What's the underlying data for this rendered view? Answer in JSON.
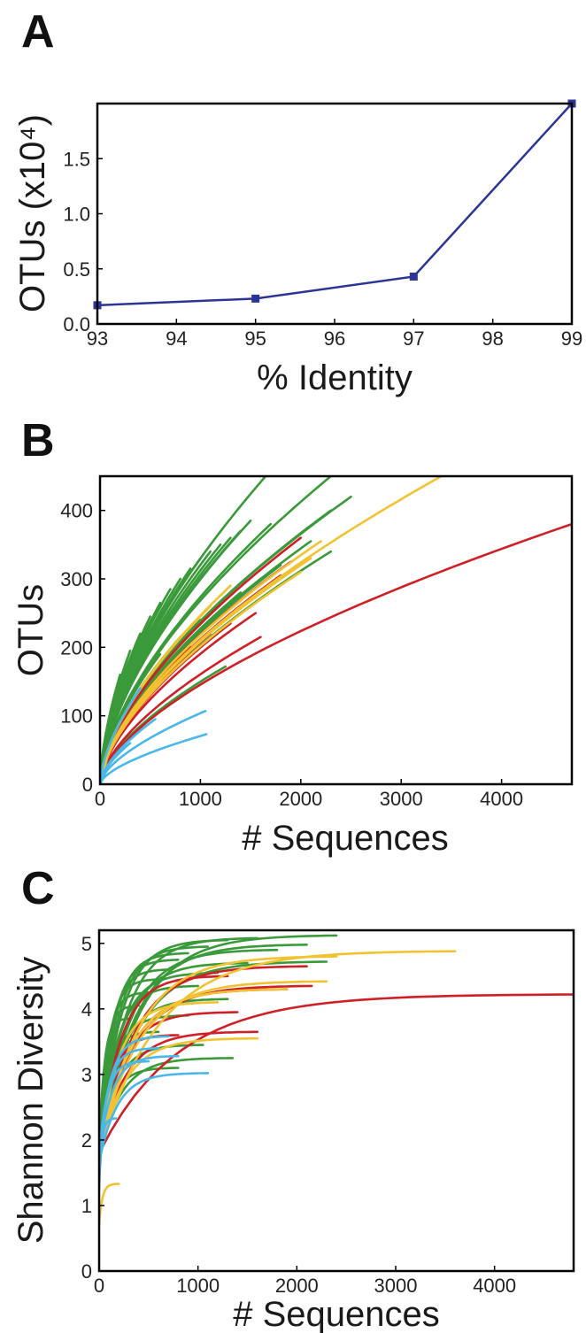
{
  "panels": {
    "a": {
      "letter": "A"
    },
    "b": {
      "letter": "B"
    },
    "c": {
      "letter": "C"
    }
  },
  "chart_data": [
    {
      "panel": "A",
      "type": "line",
      "xlabel": "% Identity",
      "ylabel": "OTUs (x10⁴)",
      "xlim": [
        93,
        99
      ],
      "ylim": [
        0,
        2.0
      ],
      "xticks": [
        "93",
        "94",
        "95",
        "96",
        "97",
        "98",
        "99"
      ],
      "yticks": [
        "0.0",
        "0.5",
        "1.0",
        "1.5"
      ],
      "grid": false,
      "series": [
        {
          "color": "#2b3595",
          "marker": "square",
          "x": [
            93,
            95,
            97,
            99
          ],
          "y": [
            0.17,
            0.23,
            0.43,
            2.0
          ]
        }
      ]
    },
    {
      "panel": "B",
      "type": "line",
      "xlabel": "# Sequences",
      "ylabel": "OTUs",
      "xlim": [
        0,
        4700
      ],
      "ylim": [
        0,
        450
      ],
      "xticks": [
        "0",
        "1000",
        "2000",
        "3000",
        "4000"
      ],
      "yticks": [
        "0",
        "100",
        "200",
        "300",
        "400"
      ],
      "grid": false,
      "color_groups": {
        "green": "#3a9a3a",
        "red": "#cf2027",
        "yellow": "#f1c232",
        "blue": "#49b8e8"
      },
      "curves": [
        {
          "c": "green",
          "n": 1650,
          "v": 450
        },
        {
          "c": "green",
          "n": 2300,
          "v": 450
        },
        {
          "c": "green",
          "n": 2500,
          "v": 420
        },
        {
          "c": "green",
          "n": 2300,
          "v": 400
        },
        {
          "c": "green",
          "n": 1500,
          "v": 385
        },
        {
          "c": "green",
          "n": 1700,
          "v": 380
        },
        {
          "c": "green",
          "n": 1400,
          "v": 370
        },
        {
          "c": "green",
          "n": 1300,
          "v": 360
        },
        {
          "c": "green",
          "n": 2100,
          "v": 355
        },
        {
          "c": "green",
          "n": 1200,
          "v": 350
        },
        {
          "c": "green",
          "n": 1100,
          "v": 340
        },
        {
          "c": "green",
          "n": 2300,
          "v": 340
        },
        {
          "c": "green",
          "n": 1000,
          "v": 330
        },
        {
          "c": "green",
          "n": 900,
          "v": 315
        },
        {
          "c": "green",
          "n": 1800,
          "v": 320
        },
        {
          "c": "green",
          "n": 800,
          "v": 300
        },
        {
          "c": "green",
          "n": 1600,
          "v": 300
        },
        {
          "c": "green",
          "n": 700,
          "v": 285
        },
        {
          "c": "green",
          "n": 1400,
          "v": 280
        },
        {
          "c": "green",
          "n": 600,
          "v": 265
        },
        {
          "c": "green",
          "n": 500,
          "v": 245
        },
        {
          "c": "green",
          "n": 1200,
          "v": 262
        },
        {
          "c": "green",
          "n": 400,
          "v": 220
        },
        {
          "c": "green",
          "n": 1000,
          "v": 240
        },
        {
          "c": "green",
          "n": 300,
          "v": 195
        },
        {
          "c": "green",
          "n": 800,
          "v": 215
        },
        {
          "c": "green",
          "n": 200,
          "v": 160
        },
        {
          "c": "green",
          "n": 1250,
          "v": 172
        },
        {
          "c": "green",
          "n": 600,
          "v": 190
        },
        {
          "c": "yellow",
          "n": 3400,
          "v": 450
        },
        {
          "c": "yellow",
          "n": 2200,
          "v": 355
        },
        {
          "c": "yellow",
          "n": 2100,
          "v": 330
        },
        {
          "c": "yellow",
          "n": 2000,
          "v": 310
        },
        {
          "c": "yellow",
          "n": 1300,
          "v": 290
        },
        {
          "c": "yellow",
          "n": 1100,
          "v": 260
        },
        {
          "c": "yellow",
          "n": 900,
          "v": 230
        },
        {
          "c": "yellow",
          "n": 150,
          "v": 40
        },
        {
          "c": "red",
          "n": 4700,
          "v": 380
        },
        {
          "c": "red",
          "n": 2000,
          "v": 360
        },
        {
          "c": "red",
          "n": 1900,
          "v": 325
        },
        {
          "c": "red",
          "n": 1800,
          "v": 305
        },
        {
          "c": "red",
          "n": 1600,
          "v": 280
        },
        {
          "c": "red",
          "n": 1550,
          "v": 250
        },
        {
          "c": "red",
          "n": 1300,
          "v": 235
        },
        {
          "c": "red",
          "n": 1100,
          "v": 220
        },
        {
          "c": "red",
          "n": 1600,
          "v": 215
        },
        {
          "c": "red",
          "n": 900,
          "v": 200
        },
        {
          "c": "blue",
          "n": 1050,
          "v": 107
        },
        {
          "c": "blue",
          "n": 1060,
          "v": 73
        },
        {
          "c": "blue",
          "n": 550,
          "v": 95
        },
        {
          "c": "blue",
          "n": 400,
          "v": 140
        },
        {
          "c": "blue",
          "n": 300,
          "v": 60
        }
      ]
    },
    {
      "panel": "C",
      "type": "line",
      "xlabel": "# Sequences",
      "ylabel": "Shannon Diversity",
      "xlim": [
        0,
        4800
      ],
      "ylim": [
        0,
        5.2
      ],
      "xticks": [
        "0",
        "1000",
        "2000",
        "3000",
        "4000"
      ],
      "yticks": [
        "0",
        "1",
        "2",
        "3",
        "4",
        "5"
      ],
      "grid": false,
      "color_groups": {
        "green": "#3a9a3a",
        "red": "#cf2027",
        "yellow": "#f1c232",
        "blue": "#49b8e8"
      },
      "curves": [
        {
          "c": "green",
          "n": 2400,
          "v": 5.12
        },
        {
          "c": "green",
          "n": 1600,
          "v": 5.08
        },
        {
          "c": "green",
          "n": 1300,
          "v": 5.05
        },
        {
          "c": "green",
          "n": 2100,
          "v": 4.98
        },
        {
          "c": "green",
          "n": 1100,
          "v": 4.95
        },
        {
          "c": "green",
          "n": 1800,
          "v": 4.9
        },
        {
          "c": "green",
          "n": 900,
          "v": 4.85
        },
        {
          "c": "green",
          "n": 2300,
          "v": 4.72
        },
        {
          "c": "green",
          "n": 800,
          "v": 4.75
        },
        {
          "c": "green",
          "n": 1500,
          "v": 4.7
        },
        {
          "c": "green",
          "n": 700,
          "v": 4.6
        },
        {
          "c": "green",
          "n": 1200,
          "v": 4.55
        },
        {
          "c": "green",
          "n": 600,
          "v": 4.45
        },
        {
          "c": "green",
          "n": 1000,
          "v": 4.35
        },
        {
          "c": "green",
          "n": 500,
          "v": 4.25
        },
        {
          "c": "green",
          "n": 1300,
          "v": 4.15
        },
        {
          "c": "green",
          "n": 400,
          "v": 4.05
        },
        {
          "c": "green",
          "n": 900,
          "v": 3.9
        },
        {
          "c": "green",
          "n": 600,
          "v": 3.65
        },
        {
          "c": "green",
          "n": 1050,
          "v": 3.45
        },
        {
          "c": "green",
          "n": 1350,
          "v": 3.25
        },
        {
          "c": "green",
          "n": 800,
          "v": 3.1
        },
        {
          "c": "green",
          "n": 300,
          "v": 3.85
        },
        {
          "c": "yellow",
          "n": 3600,
          "v": 4.88
        },
        {
          "c": "yellow",
          "n": 2400,
          "v": 4.8
        },
        {
          "c": "yellow",
          "n": 2300,
          "v": 4.42
        },
        {
          "c": "yellow",
          "n": 1900,
          "v": 4.3
        },
        {
          "c": "yellow",
          "n": 1600,
          "v": 3.55
        },
        {
          "c": "yellow",
          "n": 1200,
          "v": 4.1
        },
        {
          "c": "yellow",
          "n": 200,
          "v": 1.33
        },
        {
          "c": "red",
          "n": 4800,
          "v": 4.22
        },
        {
          "c": "red",
          "n": 2100,
          "v": 4.65
        },
        {
          "c": "red",
          "n": 2150,
          "v": 4.35
        },
        {
          "c": "red",
          "n": 1900,
          "v": 4.3
        },
        {
          "c": "red",
          "n": 1400,
          "v": 3.95
        },
        {
          "c": "red",
          "n": 1600,
          "v": 3.65
        },
        {
          "c": "red",
          "n": 800,
          "v": 3.6
        },
        {
          "c": "red",
          "n": 1300,
          "v": 4.5
        },
        {
          "c": "blue",
          "n": 1100,
          "v": 3.02
        },
        {
          "c": "blue",
          "n": 800,
          "v": 3.28
        },
        {
          "c": "blue",
          "n": 700,
          "v": 3.58
        },
        {
          "c": "blue",
          "n": 600,
          "v": 3.4
        },
        {
          "c": "blue",
          "n": 170,
          "v": 2.33
        },
        {
          "c": "blue",
          "n": 500,
          "v": 3.2
        }
      ]
    }
  ]
}
